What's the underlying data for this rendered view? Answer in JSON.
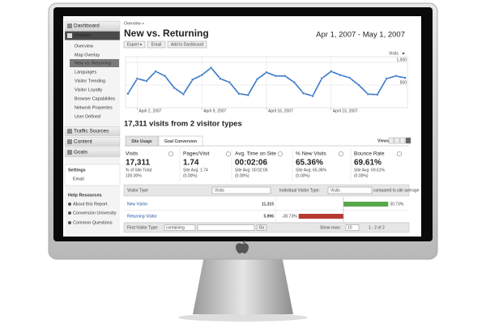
{
  "sidebar": {
    "items": [
      "Dashboard",
      "Visitors",
      "Overview",
      "Map Overlay",
      "New vs. Returning",
      "Languages",
      "Visitor Trending",
      "Visitor Loyalty",
      "Browser Capabilities",
      "Network Properties",
      "User Defined",
      "Traffic Sources",
      "Content",
      "Goals"
    ],
    "settings": {
      "title": "Settings",
      "items": [
        "Email"
      ]
    },
    "help": {
      "title": "Help Resources",
      "items": [
        "About this Report",
        "Conversion University",
        "Common Questions"
      ]
    }
  },
  "header": {
    "breadcrumb": "Overview »",
    "title": "New vs. Returning",
    "date_range": "Apr 1, 2007 - May 1, 2007",
    "buttons": [
      "Export ▾",
      "Email",
      "Add to Dashboard"
    ]
  },
  "chart_data": {
    "type": "line",
    "metric_selector": "Visits",
    "categories": [
      null,
      "April 2, 2007",
      null,
      null,
      null,
      null,
      null,
      null,
      "April 9, 2007",
      null,
      null,
      null,
      null,
      null,
      null,
      "April 16, 2007",
      null,
      null,
      null,
      null,
      null,
      null,
      "April 23, 2007",
      null,
      null,
      null,
      null,
      null,
      null,
      null,
      null
    ],
    "series": [
      {
        "name": "Visits",
        "color": "#3a78c8",
        "values": [
          310,
          640,
          590,
          800,
          700,
          440,
          300,
          620,
          720,
          880,
          640,
          560,
          310,
          280,
          630,
          780,
          700,
          700,
          560,
          320,
          260,
          650,
          800,
          720,
          660,
          500,
          300,
          290,
          640,
          700,
          660
        ]
      }
    ],
    "ylim": [
      0,
      1000
    ],
    "yticks": [
      {
        "value": 1000,
        "label": "1,000"
      },
      500
    ],
    "grid": true
  },
  "summary": {
    "heading": "17,311 visits from 2 visitor types",
    "tabs": [
      "Site Usage",
      "Goal Conversion"
    ],
    "views_label": "Views:",
    "metrics": [
      {
        "label": "Visits",
        "value": "17,311",
        "notes": [
          "% of Site Total:",
          "100.00%"
        ]
      },
      {
        "label": "Pages/Visit",
        "value": "1.74",
        "notes": [
          "Site Avg: 1.74",
          "(0.00%)"
        ]
      },
      {
        "label": "Avg. Time on Site",
        "value": "00:02:06",
        "notes": [
          "Site Avg: 00:02:06",
          "(0.00%)"
        ]
      },
      {
        "label": "% New Visits",
        "value": "65.36%",
        "notes": [
          "Site Avg: 65.36%",
          "(0.00%)"
        ]
      },
      {
        "label": "Bounce Rate",
        "value": "69.61%",
        "notes": [
          "Site Avg: 69.61%",
          "(0.00%)"
        ]
      }
    ]
  },
  "table": {
    "header": [
      "Visitor Type",
      "Visits",
      "Individual Visitor Type:",
      "Visits",
      "compared to site average"
    ],
    "rows": [
      {
        "type": "New Visitor",
        "visits": "11,315",
        "comparison": 30.73,
        "comparison_label": "30.73%"
      },
      {
        "type": "Returning Visitor",
        "visits": "5,996",
        "comparison": -30.73,
        "comparison_label": "-30.73%"
      }
    ],
    "footer": {
      "find_label": "Find Visitor Type:",
      "match": "containing",
      "go": "Go",
      "show_rows_label": "Show rows:",
      "rows": "10",
      "pagination": "1 - 2 of 2"
    }
  }
}
